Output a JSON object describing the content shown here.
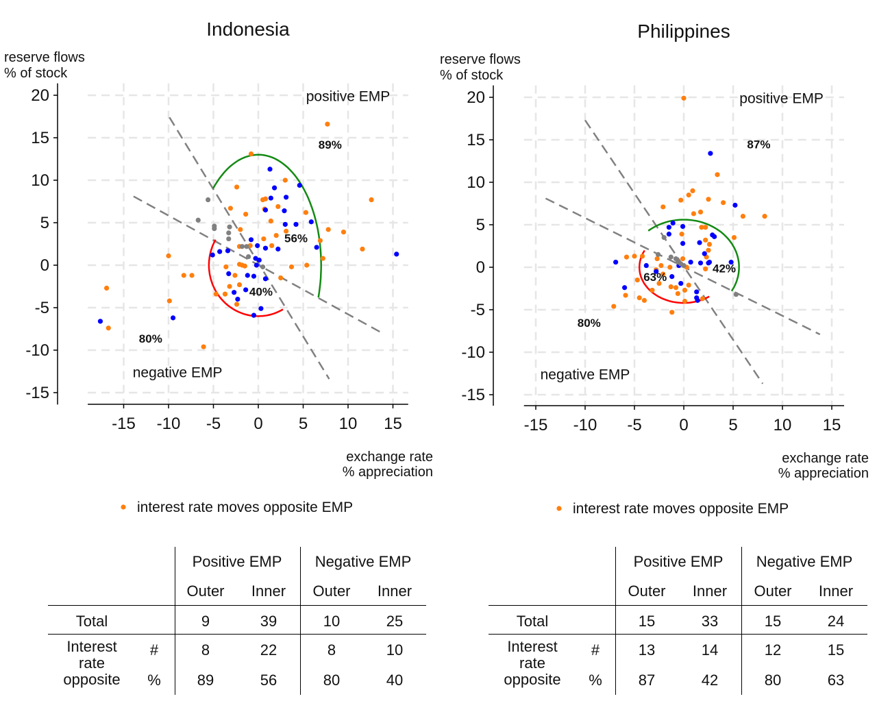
{
  "tables": [
    {
      "headers": [
        "Positive EMP",
        "Negative EMP"
      ],
      "subheaders": [
        "Outer",
        "Inner",
        "Outer",
        "Inner"
      ],
      "total_label": "Total",
      "total": [
        "9",
        "39",
        "10",
        "25"
      ],
      "interest_label": [
        "Interest",
        "rate",
        "opposite"
      ],
      "count_symbol": "#",
      "pct_symbol": "%",
      "count": [
        "8",
        "22",
        "8",
        "10"
      ],
      "pct": [
        "89",
        "56",
        "80",
        "40"
      ]
    },
    {
      "headers": [
        "Positive EMP",
        "Negative EMP"
      ],
      "subheaders": [
        "Outer",
        "Inner",
        "Outer",
        "Inner"
      ],
      "total_label": "Total",
      "total": [
        "15",
        "33",
        "15",
        "24"
      ],
      "interest_label": [
        "Interest",
        "rate",
        "opposite"
      ],
      "count_symbol": "#",
      "pct_symbol": "%",
      "count": [
        "13",
        "14",
        "12",
        "15"
      ],
      "pct": [
        "87",
        "42",
        "80",
        "63"
      ]
    }
  ],
  "chart_data": [
    {
      "type": "scatter",
      "title": "Indonesia",
      "ylabel": [
        "reserve flows",
        "% of stock"
      ],
      "xlabel": [
        "exchange rate",
        "% appreciation"
      ],
      "xticks": [
        -15,
        -10,
        -5,
        0,
        5,
        10,
        15
      ],
      "yticks": [
        -15,
        -10,
        -5,
        0,
        5,
        10,
        15,
        20
      ],
      "xlim": [
        -19,
        16.7
      ],
      "ylim": [
        -16.4,
        21.4
      ],
      "grid": true,
      "legend": {
        "label": "interest rate moves opposite EMP",
        "placement": "bottom"
      },
      "colors": {
        "orange": "#ff7f0e",
        "blue": "#0000ff",
        "gray": "#808080",
        "green": "#138a13",
        "red": "#ff0000",
        "line": "#808080"
      },
      "annotations": [
        {
          "text": "positive EMP",
          "x": 10,
          "y": 19.3,
          "bold": false
        },
        {
          "text": "negative EMP",
          "x": -9,
          "y": -13.2,
          "bold": false
        },
        {
          "text": "89%",
          "x": 8,
          "y": 13.7,
          "bold": true
        },
        {
          "text": "56%",
          "x": 4.2,
          "y": 2.7,
          "bold": true
        },
        {
          "text": "40%",
          "x": 0.3,
          "y": -3.6,
          "bold": true
        },
        {
          "text": "80%",
          "x": -12,
          "y": -9.1,
          "bold": true
        }
      ],
      "lines": [
        [
          [
            -9.9,
            17.4
          ],
          [
            7.9,
            -13.4
          ]
        ],
        [
          [
            -13.9,
            8.1
          ],
          [
            14,
            -8.1
          ]
        ]
      ],
      "arcs": [
        {
          "color": "green",
          "rx": 7,
          "ry": 13,
          "from": 136,
          "to": -17
        },
        {
          "color": "red",
          "rx": 5.5,
          "ry": 6,
          "from": 150,
          "to": 300
        }
      ],
      "series": [
        {
          "color": "orange",
          "points": [
            [
              7.7,
              16.6
            ],
            [
              -0.8,
              13.1
            ],
            [
              -2.4,
              9.2
            ],
            [
              3,
              10
            ],
            [
              -3.1,
              6.7
            ],
            [
              0.5,
              7.7
            ],
            [
              0.8,
              7.8
            ],
            [
              2.2,
              6.9
            ],
            [
              0.7,
              6.6
            ],
            [
              -1.4,
              6
            ],
            [
              5.3,
              6.2
            ],
            [
              1.4,
              5.2
            ],
            [
              -2,
              4.2
            ],
            [
              3.1,
              4
            ],
            [
              0.6,
              3.1
            ],
            [
              2,
              3.5
            ],
            [
              7.8,
              4.2
            ],
            [
              9.5,
              3.9
            ],
            [
              6.9,
              2.9
            ],
            [
              -0.9,
              2.3
            ],
            [
              1.5,
              2.3
            ],
            [
              -2.1,
              2.2
            ],
            [
              11.6,
              1.9
            ],
            [
              12.6,
              7.7
            ],
            [
              7.2,
              0.8
            ],
            [
              -10,
              1.1
            ],
            [
              -8.3,
              -1.2
            ],
            [
              -7.4,
              -1.2
            ],
            [
              -16.9,
              -2.7
            ],
            [
              -16.7,
              -7.4
            ],
            [
              -9.9,
              -4.2
            ],
            [
              -6.1,
              -9.6
            ],
            [
              3.7,
              -0.2
            ],
            [
              5.4,
              0
            ],
            [
              -2.1,
              0.1
            ],
            [
              -1.5,
              -0.1
            ],
            [
              -3.6,
              -0.2
            ],
            [
              -2.6,
              -1.2
            ],
            [
              2.5,
              -1.5
            ],
            [
              -3.2,
              -2.5
            ],
            [
              -2.1,
              -2.3
            ],
            [
              -3.7,
              -3.4
            ],
            [
              -4.7,
              -3.4
            ],
            [
              -2.4,
              -4.6
            ],
            [
              -1.8,
              0
            ]
          ]
        },
        {
          "color": "blue",
          "points": [
            [
              1.3,
              11.3
            ],
            [
              1.8,
              9.1
            ],
            [
              1.4,
              7.9
            ],
            [
              3.1,
              8
            ],
            [
              4.6,
              9.4
            ],
            [
              2.9,
              6.4
            ],
            [
              0.8,
              6.5
            ],
            [
              3,
              4.8
            ],
            [
              4.2,
              4.8
            ],
            [
              5.9,
              5.1
            ],
            [
              6.5,
              2.1
            ],
            [
              -0.8,
              3
            ],
            [
              -0.1,
              2.3
            ],
            [
              0.8,
              2
            ],
            [
              2.2,
              1.9
            ],
            [
              -3.4,
              1.7
            ],
            [
              -4.3,
              1.6
            ],
            [
              -5.1,
              1.2
            ],
            [
              -0.3,
              0.8
            ],
            [
              0.1,
              0.6
            ],
            [
              -0.2,
              0
            ],
            [
              -3.3,
              -1
            ],
            [
              -1.2,
              -1.2
            ],
            [
              -0.5,
              -1.3
            ],
            [
              0.8,
              -1.6
            ],
            [
              -1.4,
              -2.9
            ],
            [
              -2.7,
              -3.2
            ],
            [
              -2.3,
              -4
            ],
            [
              0.3,
              -5.1
            ],
            [
              -0.5,
              -5.9
            ],
            [
              15.4,
              1.3
            ],
            [
              -17.6,
              -6.6
            ],
            [
              -9.5,
              -6.2
            ]
          ]
        },
        {
          "color": "gray",
          "points": [
            [
              -5.6,
              7.7
            ],
            [
              -6.7,
              5.3
            ],
            [
              -4.9,
              4.6
            ],
            [
              -4.9,
              4.3
            ],
            [
              -3.2,
              4.5
            ],
            [
              -3.3,
              3.8
            ],
            [
              -3.3,
              3.1
            ],
            [
              -1.8,
              2.2
            ],
            [
              -1.3,
              2.2
            ],
            [
              -1.1,
              1
            ],
            [
              0.5,
              -0.2
            ]
          ]
        }
      ]
    },
    {
      "type": "scatter",
      "title": "Philippines",
      "ylabel": [
        "reserve flows",
        "% of stock"
      ],
      "xlabel": [
        "exchange rate",
        "% appreciation"
      ],
      "xticks": [
        -15,
        -10,
        -5,
        0,
        5,
        10,
        15
      ],
      "yticks": [
        -15,
        -10,
        -5,
        0,
        5,
        10,
        15,
        20
      ],
      "xlim": [
        -16.2,
        16.25
      ],
      "ylim": [
        -16.3,
        21.4
      ],
      "grid": true,
      "legend": {
        "label": "interest rate moves opposite EMP",
        "placement": "bottom"
      },
      "colors": {
        "orange": "#ff7f0e",
        "blue": "#0000ff",
        "gray": "#808080",
        "green": "#138a13",
        "red": "#ff0000",
        "line": "#808080"
      },
      "annotations": [
        {
          "text": "positive EMP",
          "x": 9.9,
          "y": 19.3,
          "bold": false
        },
        {
          "text": "negative EMP",
          "x": -10,
          "y": -13.2,
          "bold": false
        },
        {
          "text": "87%",
          "x": 7.6,
          "y": 14,
          "bold": true
        },
        {
          "text": "42%",
          "x": 4.1,
          "y": -0.6,
          "bold": true
        },
        {
          "text": "63%",
          "x": -2.9,
          "y": -1.6,
          "bold": true
        },
        {
          "text": "80%",
          "x": -9.6,
          "y": -7,
          "bold": true
        }
      ],
      "lines": [
        [
          [
            -10,
            17.3
          ],
          [
            8,
            -13.7
          ]
        ],
        [
          [
            -14,
            8.1
          ],
          [
            13.8,
            -7.9
          ]
        ]
      ],
      "arcs": [
        {
          "color": "green",
          "rx": 5.6,
          "ry": 5.6,
          "from": 130,
          "to": -30
        },
        {
          "color": "red",
          "rx": 4.5,
          "ry": 4.2,
          "from": 152,
          "to": 305
        }
      ],
      "series": [
        {
          "color": "orange",
          "points": [
            [
              0,
              19.9
            ],
            [
              3.4,
              10.9
            ],
            [
              0.9,
              9
            ],
            [
              0.5,
              8.5
            ],
            [
              2.5,
              8
            ],
            [
              -0.3,
              7.9
            ],
            [
              -2.1,
              7.1
            ],
            [
              4,
              7.6
            ],
            [
              6,
              6
            ],
            [
              8.2,
              6
            ],
            [
              1.7,
              6.5
            ],
            [
              1,
              6.3
            ],
            [
              1.8,
              4.7
            ],
            [
              2.2,
              4.7
            ],
            [
              -0.2,
              3.9
            ],
            [
              5.1,
              3.5
            ],
            [
              2.2,
              3.2
            ],
            [
              2.6,
              2.7
            ],
            [
              2.5,
              2
            ],
            [
              2.3,
              1.2
            ],
            [
              -5.8,
              1.2
            ],
            [
              -5,
              1.3
            ],
            [
              -4.2,
              1.3
            ],
            [
              -2.7,
              1
            ],
            [
              -2.3,
              0.2
            ],
            [
              -1.4,
              0
            ],
            [
              0.3,
              0
            ],
            [
              -0.1,
              1
            ],
            [
              2.2,
              -0.2
            ],
            [
              -2.1,
              -0.8
            ],
            [
              -4.7,
              -1.5
            ],
            [
              -4.5,
              -3.6
            ],
            [
              -4,
              -3.9
            ],
            [
              -5.9,
              -3.3
            ],
            [
              -7.1,
              -4.6
            ],
            [
              -3.2,
              -2.7
            ],
            [
              -2.5,
              -1.9
            ],
            [
              -1.3,
              -2.3
            ],
            [
              -0.8,
              -2.4
            ],
            [
              -0.6,
              -3.1
            ],
            [
              0.1,
              -2.7
            ],
            [
              0.1,
              -4
            ],
            [
              -1.2,
              -5.3
            ],
            [
              1.9,
              -3.7
            ],
            [
              0.5,
              -2.1
            ],
            [
              -2.8,
              -0.3
            ]
          ]
        },
        {
          "color": "blue",
          "points": [
            [
              2.7,
              13.4
            ],
            [
              5.2,
              7.3
            ],
            [
              -1.1,
              5.2
            ],
            [
              -1.5,
              4.7
            ],
            [
              -1.5,
              3.9
            ],
            [
              -0.1,
              4.8
            ],
            [
              -0.1,
              2.8
            ],
            [
              2.9,
              3.8
            ],
            [
              3.1,
              3.6
            ],
            [
              1.6,
              2.9
            ],
            [
              2.1,
              1.6
            ],
            [
              2.6,
              0.6
            ],
            [
              0.7,
              0.6
            ],
            [
              1.7,
              0.5
            ],
            [
              2.5,
              0.5
            ],
            [
              4.8,
              0.6
            ],
            [
              -6.9,
              0.6
            ],
            [
              -3.8,
              0.2
            ],
            [
              -2.8,
              -0.5
            ],
            [
              -1.2,
              -1.1
            ],
            [
              -0.5,
              0.2
            ],
            [
              -6,
              -2.4
            ],
            [
              -0.3,
              -1.9
            ],
            [
              1.3,
              -2.9
            ],
            [
              1.3,
              -3.6
            ],
            [
              1.4,
              -3.9
            ]
          ]
        },
        {
          "color": "gray",
          "points": [
            [
              -2,
              3.5
            ],
            [
              -2.6,
              1.5
            ],
            [
              -1.3,
              1.2
            ],
            [
              -0.8,
              1
            ],
            [
              -0.6,
              0.6
            ],
            [
              -0.3,
              0.4
            ],
            [
              0,
              0.2
            ],
            [
              5.3,
              -3.2
            ]
          ]
        }
      ]
    }
  ]
}
